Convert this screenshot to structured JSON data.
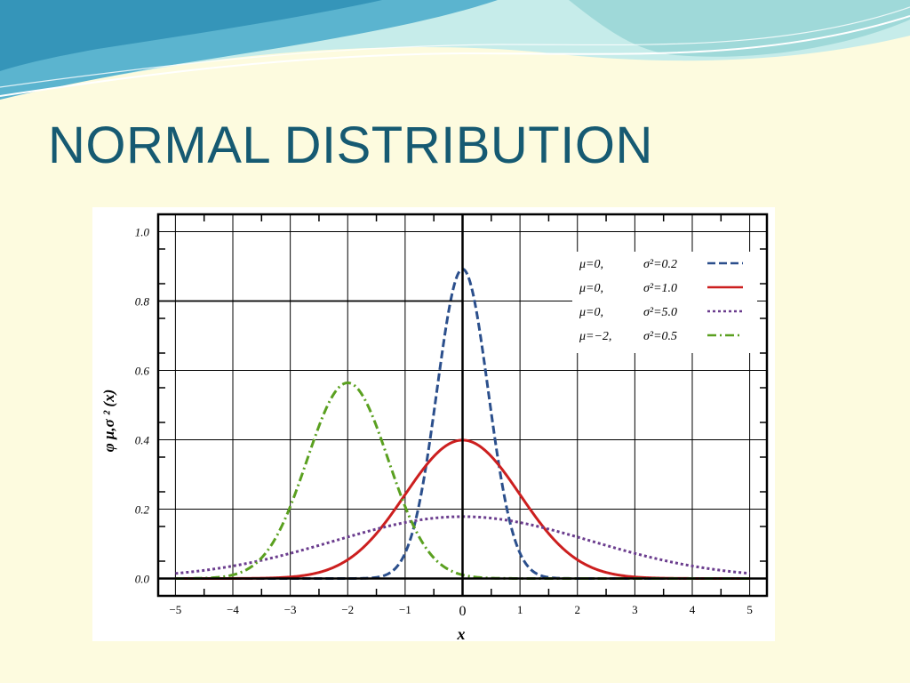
{
  "slide": {
    "title": "NORMAL DISTRIBUTION"
  },
  "colors": {
    "background": "#fdfbdf",
    "title": "#165a72",
    "wave_light": "#b7e6e6",
    "wave_dark": "#3a9fc2"
  },
  "chart_data": {
    "type": "line",
    "title": "",
    "xlabel": "x",
    "ylabel": "φ μ,σ ² (x)",
    "xlim": [
      -5.3,
      5.3
    ],
    "ylim": [
      -0.05,
      1.05
    ],
    "grid": true,
    "legend_position": "top-right",
    "x_ticks": [
      -5,
      -4,
      -3,
      -2,
      -1,
      0,
      1,
      2,
      3,
      4,
      5
    ],
    "x_tick_labels": [
      "−5",
      "−4",
      "−3",
      "−2",
      "−1",
      "0",
      "1",
      "2",
      "3",
      "4",
      "5"
    ],
    "y_ticks": [
      0.0,
      0.2,
      0.4,
      0.6,
      0.8,
      1.0
    ],
    "y_tick_labels": [
      "0.0",
      "0.2",
      "0.4",
      "0.6",
      "0.8",
      "1.0"
    ],
    "series": [
      {
        "name": "μ=0,   σ²=0.2",
        "legend_left": "μ=0,",
        "legend_right": "σ²=0.2",
        "mu": 0,
        "variance": 0.2,
        "color": "#2b4f8c",
        "style": "dashed",
        "peak": 0.892
      },
      {
        "name": "μ=0,   σ²=1.0",
        "legend_left": "μ=0,",
        "legend_right": "σ²=1.0",
        "mu": 0,
        "variance": 1.0,
        "color": "#cc1f1f",
        "style": "solid",
        "peak": 0.399
      },
      {
        "name": "μ=0,   σ²=5.0",
        "legend_left": "μ=0,",
        "legend_right": "σ²=5.0",
        "mu": 0,
        "variance": 5.0,
        "color": "#6b3d8e",
        "style": "dotted",
        "peak": 0.178
      },
      {
        "name": "μ=−2,  σ²=0.5",
        "legend_left": "μ=−2,",
        "legend_right": "σ²=0.5",
        "mu": -2,
        "variance": 0.5,
        "color": "#5aa020",
        "style": "dashdot",
        "peak": 0.564
      }
    ]
  }
}
